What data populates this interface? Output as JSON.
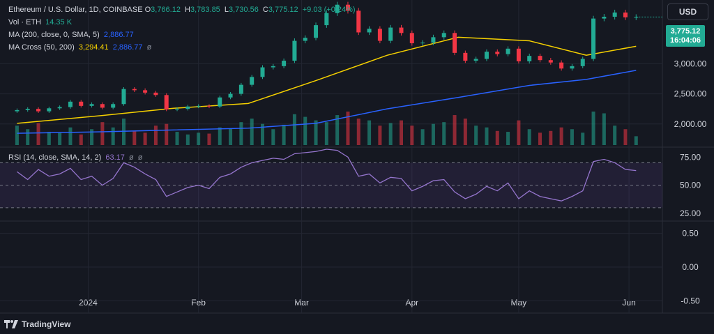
{
  "legend": {
    "symbol_line": "Ethereum / U.S. Dollar, 1D, COINBASE",
    "o_label": "O",
    "o_value": "3,766.12",
    "h_label": "H",
    "h_value": "3,783.85",
    "l_label": "L",
    "l_value": "3,730.56",
    "c_label": "C",
    "c_value": "3,775.12",
    "change": "+9.03 (+0.24%)",
    "vol_label": "Vol · ETH",
    "vol_value": "14.35 K",
    "ma_label": "MA (200, close, 0, SMA, 5)",
    "ma_value": "2,886.77",
    "cross_label": "MA Cross (50, 200)",
    "cross_fast": "3,294.41",
    "cross_slow": "2,886.77",
    "cross_eye": "ø",
    "rsi_label": "RSI (14, close, SMA, 14, 2)",
    "rsi_value": "63.17",
    "rsi_eye1": "ø",
    "rsi_eye2": "ø"
  },
  "currency_button": "USD",
  "last_price_badge": {
    "price": "3,775.12",
    "countdown": "16:04:06"
  },
  "brand": "TradingView",
  "colors": {
    "background": "#151821",
    "up": "#22ab94",
    "down": "#f23645",
    "ma200": "#2962ff",
    "ma50": "#f5d000",
    "rsi": "#9575cd",
    "grid": "#232632"
  },
  "chart_data": [
    {
      "type": "candlestick",
      "title": "Ethereum / U.S. Dollar, 1D, COINBASE",
      "x_ticks": [
        "2024",
        "Feb",
        "Mar",
        "Apr",
        "May",
        "Jun"
      ],
      "y_ticks": [
        "2,000.00",
        "2,500.00",
        "3,000.00"
      ],
      "ylim": [
        1650,
        4000
      ],
      "series": [
        {
          "name": "Close",
          "x": [
            "2023-12-12",
            "2023-12-15",
            "2023-12-18",
            "2023-12-21",
            "2023-12-24",
            "2023-12-27",
            "2023-12-30",
            "2024-01-02",
            "2024-01-05",
            "2024-01-08",
            "2024-01-11",
            "2024-01-14",
            "2024-01-17",
            "2024-01-20",
            "2024-01-23",
            "2024-01-26",
            "2024-01-29",
            "2024-02-01",
            "2024-02-04",
            "2024-02-07",
            "2024-02-10",
            "2024-02-13",
            "2024-02-16",
            "2024-02-19",
            "2024-02-22",
            "2024-02-25",
            "2024-02-28",
            "2024-03-02",
            "2024-03-05",
            "2024-03-08",
            "2024-03-11",
            "2024-03-14",
            "2024-03-17",
            "2024-03-20",
            "2024-03-23",
            "2024-03-26",
            "2024-03-29",
            "2024-04-01",
            "2024-04-04",
            "2024-04-07",
            "2024-04-10",
            "2024-04-13",
            "2024-04-16",
            "2024-04-19",
            "2024-04-22",
            "2024-04-25",
            "2024-04-28",
            "2024-05-01",
            "2024-05-04",
            "2024-05-07",
            "2024-05-10",
            "2024-05-13",
            "2024-05-16",
            "2024-05-19",
            "2024-05-22",
            "2024-05-25",
            "2024-05-28",
            "2024-05-31",
            "2024-06-03"
          ],
          "values": [
            2230,
            2250,
            2210,
            2260,
            2280,
            2370,
            2300,
            2330,
            2270,
            2330,
            2580,
            2560,
            2520,
            2480,
            2240,
            2250,
            2290,
            2300,
            2290,
            2440,
            2500,
            2650,
            2780,
            2940,
            2960,
            3050,
            3380,
            3430,
            3640,
            3840,
            3980,
            3880,
            3520,
            3580,
            3380,
            3600,
            3510,
            3340,
            3350,
            3440,
            3510,
            3180,
            3050,
            3080,
            3200,
            3160,
            3250,
            3040,
            3130,
            3060,
            3020,
            2920,
            2960,
            3080,
            3750,
            3780,
            3850,
            3770,
            3775
          ]
        },
        {
          "name": "MA Cross fast (50)",
          "x": [
            "2023-12-12",
            "2024-01-05",
            "2024-01-25",
            "2024-02-15",
            "2024-03-05",
            "2024-03-25",
            "2024-04-14",
            "2024-05-04",
            "2024-05-20",
            "2024-06-03"
          ],
          "values": [
            2010,
            2140,
            2260,
            2340,
            2720,
            3140,
            3440,
            3380,
            3140,
            3290
          ]
        },
        {
          "name": "MA (200)",
          "x": [
            "2023-12-12",
            "2024-01-05",
            "2024-01-25",
            "2024-02-15",
            "2024-03-05",
            "2024-03-25",
            "2024-04-14",
            "2024-05-04",
            "2024-05-20",
            "2024-06-03"
          ],
          "values": [
            1845,
            1870,
            1900,
            1930,
            2010,
            2250,
            2440,
            2640,
            2740,
            2890
          ]
        }
      ]
    },
    {
      "type": "bar",
      "title": "Vol · ETH",
      "x": [
        "2023-12-12",
        "2023-12-15",
        "2023-12-18",
        "2023-12-21",
        "2023-12-24",
        "2023-12-27",
        "2023-12-30",
        "2024-01-02",
        "2024-01-05",
        "2024-01-08",
        "2024-01-11",
        "2024-01-14",
        "2024-01-17",
        "2024-01-20",
        "2024-01-23",
        "2024-01-26",
        "2024-01-29",
        "2024-02-01",
        "2024-02-04",
        "2024-02-07",
        "2024-02-10",
        "2024-02-13",
        "2024-02-16",
        "2024-02-19",
        "2024-02-22",
        "2024-02-25",
        "2024-02-28",
        "2024-03-02",
        "2024-03-05",
        "2024-03-08",
        "2024-03-11",
        "2024-03-14",
        "2024-03-17",
        "2024-03-20",
        "2024-03-23",
        "2024-03-26",
        "2024-03-29",
        "2024-04-01",
        "2024-04-04",
        "2024-04-07",
        "2024-04-10",
        "2024-04-13",
        "2024-04-16",
        "2024-04-19",
        "2024-04-22",
        "2024-04-25",
        "2024-04-28",
        "2024-05-01",
        "2024-05-04",
        "2024-05-07",
        "2024-05-10",
        "2024-05-13",
        "2024-05-16",
        "2024-05-19",
        "2024-05-22",
        "2024-05-25",
        "2024-05-28",
        "2024-05-31",
        "2024-06-03"
      ],
      "values": [
        22,
        18,
        25,
        15,
        14,
        20,
        12,
        18,
        26,
        20,
        30,
        16,
        14,
        22,
        24,
        15,
        12,
        14,
        13,
        20,
        19,
        26,
        30,
        24,
        18,
        23,
        35,
        32,
        28,
        26,
        34,
        38,
        30,
        28,
        22,
        25,
        28,
        22,
        18,
        24,
        26,
        34,
        30,
        22,
        20,
        16,
        15,
        28,
        18,
        14,
        16,
        20,
        18,
        14,
        38,
        36,
        22,
        18,
        10
      ]
    },
    {
      "type": "line",
      "title": "RSI (14, close, SMA, 14, 2)",
      "y_ticks": [
        "25.00",
        "50.00",
        "75.00"
      ],
      "bands": [
        30,
        50,
        70
      ],
      "ylim": [
        20,
        82
      ],
      "series": [
        {
          "name": "RSI",
          "x": [
            "2023-12-12",
            "2023-12-15",
            "2023-12-18",
            "2023-12-21",
            "2023-12-24",
            "2023-12-27",
            "2023-12-30",
            "2024-01-02",
            "2024-01-05",
            "2024-01-08",
            "2024-01-11",
            "2024-01-14",
            "2024-01-17",
            "2024-01-20",
            "2024-01-23",
            "2024-01-26",
            "2024-01-29",
            "2024-02-01",
            "2024-02-04",
            "2024-02-07",
            "2024-02-10",
            "2024-02-13",
            "2024-02-16",
            "2024-02-19",
            "2024-02-22",
            "2024-02-25",
            "2024-02-28",
            "2024-03-02",
            "2024-03-05",
            "2024-03-08",
            "2024-03-11",
            "2024-03-14",
            "2024-03-17",
            "2024-03-20",
            "2024-03-23",
            "2024-03-26",
            "2024-03-29",
            "2024-04-01",
            "2024-04-04",
            "2024-04-07",
            "2024-04-10",
            "2024-04-13",
            "2024-04-16",
            "2024-04-19",
            "2024-04-22",
            "2024-04-25",
            "2024-04-28",
            "2024-05-01",
            "2024-05-04",
            "2024-05-07",
            "2024-05-10",
            "2024-05-13",
            "2024-05-16",
            "2024-05-19",
            "2024-05-22",
            "2024-05-25",
            "2024-05-28",
            "2024-05-31",
            "2024-06-03"
          ],
          "values": [
            62,
            55,
            64,
            58,
            60,
            65,
            55,
            58,
            50,
            56,
            70,
            66,
            60,
            55,
            40,
            44,
            48,
            50,
            47,
            57,
            60,
            66,
            70,
            72,
            74,
            73,
            78,
            79,
            80,
            82,
            81,
            75,
            58,
            60,
            52,
            57,
            56,
            45,
            49,
            54,
            55,
            44,
            38,
            42,
            49,
            45,
            52,
            38,
            45,
            40,
            38,
            36,
            40,
            45,
            71,
            73,
            70,
            64,
            63
          ]
        }
      ]
    },
    {
      "type": "line",
      "title": "",
      "y_ticks": [
        "-0.50",
        "0.00",
        "0.50"
      ],
      "ylim": [
        -0.65,
        0.65
      ],
      "series": []
    }
  ]
}
